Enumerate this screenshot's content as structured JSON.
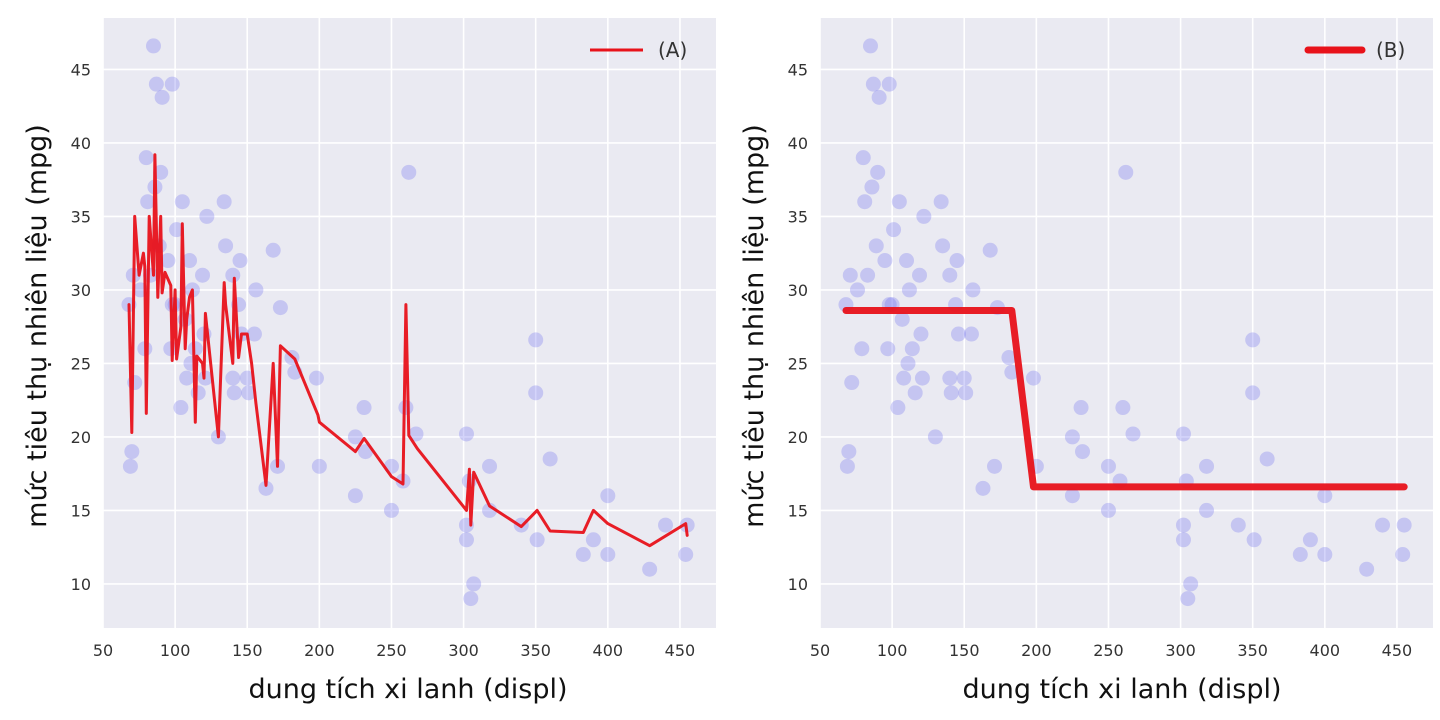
{
  "chart_data": [
    {
      "type": "scatter",
      "panel": "left",
      "xlabel": "dung tích xi lanh (displ)",
      "ylabel": "mức tiêu thụ nhiên liệu (mpg)",
      "xlim": [
        50,
        475
      ],
      "ylim": [
        7,
        48.5
      ],
      "xticks": [
        50,
        100,
        150,
        200,
        250,
        300,
        350,
        400,
        450
      ],
      "yticks": [
        10,
        15,
        20,
        25,
        30,
        35,
        40,
        45
      ],
      "grid": true,
      "legend_position": "top-right",
      "points_color": "#6f6ff0",
      "line_color": "#e8121a",
      "series": [
        {
          "name": "(A)",
          "kind": "line",
          "x": [
            68,
            70,
            72,
            75,
            78,
            79,
            80,
            82,
            85,
            86,
            88,
            90,
            91,
            93,
            97,
            98,
            100,
            101,
            104,
            105,
            107,
            108,
            110,
            112,
            114,
            115,
            119,
            120,
            121,
            130,
            134,
            135,
            140,
            141,
            144,
            146,
            150,
            153,
            156,
            163,
            168,
            171,
            173,
            183,
            199,
            200,
            225,
            231,
            250,
            258,
            260,
            262,
            268,
            302,
            304,
            305,
            307,
            318,
            340,
            351,
            360,
            383,
            390,
            400,
            429,
            454,
            455
          ],
          "y": [
            29,
            20.3,
            35,
            31,
            32.5,
            31.6,
            21.6,
            35,
            31,
            39.2,
            29.5,
            35,
            29.8,
            31.2,
            30.3,
            25.2,
            30,
            25.3,
            27.5,
            34.5,
            26,
            28,
            29.5,
            30,
            21,
            25.5,
            25,
            24,
            28.4,
            20,
            30.5,
            29,
            25,
            30.8,
            25.4,
            27,
            27,
            25,
            22.3,
            16.7,
            25,
            18,
            26.2,
            25.3,
            21.5,
            21,
            19,
            19.9,
            17.3,
            16.8,
            29,
            20.1,
            19.2,
            15,
            17.8,
            14,
            17.6,
            15.3,
            13.9,
            15,
            13.6,
            13.5,
            15,
            14.1,
            12.6,
            14.1,
            13.3
          ]
        },
        {
          "name": "",
          "kind": "scatter",
          "x": [
            68,
            69,
            70,
            71,
            72,
            76,
            79,
            80,
            81,
            83,
            85,
            86,
            87,
            89,
            90,
            91,
            95,
            97,
            98,
            98,
            100,
            101,
            104,
            105,
            107,
            108,
            110,
            111,
            112,
            114,
            116,
            119,
            120,
            121,
            122,
            130,
            134,
            135,
            140,
            140,
            141,
            144,
            145,
            146,
            150,
            151,
            155,
            156,
            163,
            168,
            171,
            173,
            181,
            183,
            198,
            200,
            225,
            225,
            231,
            232,
            250,
            250,
            258,
            260,
            262,
            267,
            302,
            302,
            302,
            304,
            305,
            307,
            318,
            318,
            340,
            350,
            350,
            351,
            360,
            383,
            390,
            400,
            400,
            429,
            440,
            454,
            455
          ],
          "y": [
            29,
            18,
            19,
            31,
            23.7,
            30,
            26,
            39,
            36,
            31,
            46.6,
            37,
            44,
            33,
            38,
            43.1,
            32,
            26,
            44,
            29,
            29,
            34.1,
            22,
            36,
            28,
            24,
            32,
            25,
            30,
            26,
            23,
            31,
            27,
            24,
            35,
            20,
            36,
            33,
            31,
            24,
            23,
            29,
            32,
            27,
            24,
            23,
            27,
            30,
            16.5,
            32.7,
            18,
            28.8,
            25.4,
            24.4,
            24,
            18,
            20,
            16,
            22,
            19,
            18,
            15,
            17,
            22,
            38,
            20.2,
            13,
            14,
            20.2,
            17,
            9,
            10,
            15,
            18,
            14,
            26.6,
            23,
            13,
            18.5,
            12,
            13,
            16,
            12,
            11,
            14,
            12,
            14
          ]
        }
      ]
    },
    {
      "type": "scatter",
      "panel": "right",
      "xlabel": "dung tích xi lanh (displ)",
      "ylabel": "mức tiêu thụ nhiên liệu (mpg)",
      "xlim": [
        50,
        475
      ],
      "ylim": [
        7,
        48.5
      ],
      "xticks": [
        50,
        100,
        150,
        200,
        250,
        300,
        350,
        400,
        450
      ],
      "yticks": [
        10,
        15,
        20,
        25,
        30,
        35,
        40,
        45
      ],
      "grid": true,
      "legend_position": "top-right",
      "points_color": "#6f6ff0",
      "line_color": "#e8121a",
      "series": [
        {
          "name": "(B)",
          "kind": "step",
          "x": [
            68,
            183,
            198,
            455
          ],
          "y": [
            28.6,
            28.6,
            16.6,
            16.6
          ]
        },
        {
          "name": "",
          "kind": "scatter",
          "x": [
            68,
            69,
            70,
            71,
            72,
            76,
            79,
            80,
            81,
            83,
            85,
            86,
            87,
            89,
            90,
            91,
            95,
            97,
            98,
            98,
            100,
            101,
            104,
            105,
            107,
            108,
            110,
            111,
            112,
            114,
            116,
            119,
            120,
            121,
            122,
            130,
            134,
            135,
            140,
            140,
            141,
            144,
            145,
            146,
            150,
            151,
            155,
            156,
            163,
            168,
            171,
            173,
            181,
            183,
            198,
            200,
            225,
            225,
            231,
            232,
            250,
            250,
            258,
            260,
            262,
            267,
            302,
            302,
            302,
            304,
            305,
            307,
            318,
            318,
            340,
            350,
            350,
            351,
            360,
            383,
            390,
            400,
            400,
            429,
            440,
            454,
            455
          ],
          "y": [
            29,
            18,
            19,
            31,
            23.7,
            30,
            26,
            39,
            36,
            31,
            46.6,
            37,
            44,
            33,
            38,
            43.1,
            32,
            26,
            44,
            29,
            29,
            34.1,
            22,
            36,
            28,
            24,
            32,
            25,
            30,
            26,
            23,
            31,
            27,
            24,
            35,
            20,
            36,
            33,
            31,
            24,
            23,
            29,
            32,
            27,
            24,
            23,
            27,
            30,
            16.5,
            32.7,
            18,
            28.8,
            25.4,
            24.4,
            24,
            18,
            20,
            16,
            22,
            19,
            18,
            15,
            17,
            22,
            38,
            20.2,
            13,
            14,
            20.2,
            17,
            9,
            10,
            15,
            18,
            14,
            26.6,
            23,
            13,
            18.5,
            12,
            13,
            16,
            12,
            11,
            14,
            12,
            14
          ]
        }
      ]
    }
  ]
}
